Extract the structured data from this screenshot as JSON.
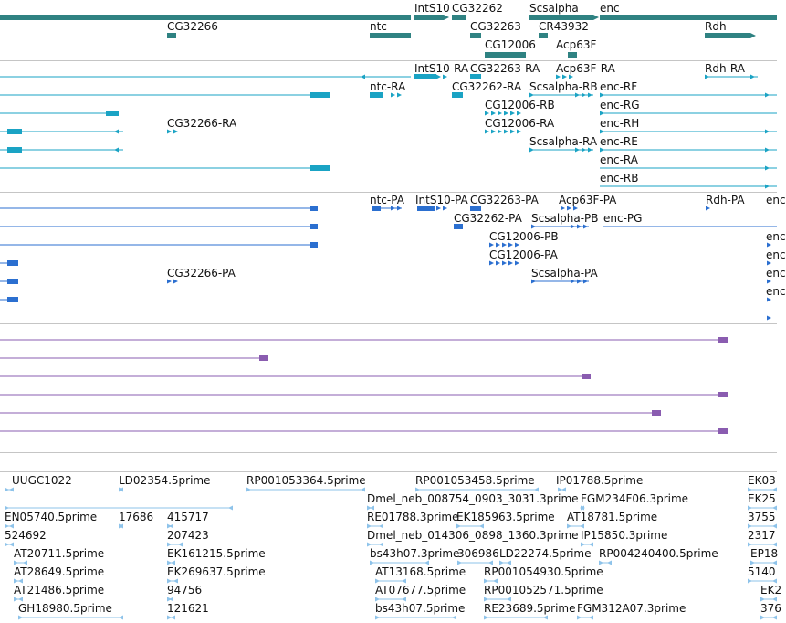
{
  "colors": {
    "gene": "#2f8282",
    "mrna": "#1aa3c4",
    "cds": "#2b6fd0",
    "read": "#8a5cb0",
    "est": "#8ec3ea",
    "separator": "#c5c5c5"
  },
  "tracks": {
    "genes": {
      "name": "gene-track",
      "features": [
        {
          "label": "IntS10",
          "row": 0
        },
        {
          "label": "CG32262",
          "row": 0
        },
        {
          "label": "Scsalpha",
          "row": 0
        },
        {
          "label": "enc",
          "row": 0
        },
        {
          "label": "CG32266",
          "row": 1
        },
        {
          "label": "ntc",
          "row": 1
        },
        {
          "label": "CG32263",
          "row": 1
        },
        {
          "label": "CR43932",
          "row": 1
        },
        {
          "label": "Rdh",
          "row": 1
        },
        {
          "label": "CG12006",
          "row": 2
        },
        {
          "label": "Acp63F",
          "row": 2
        }
      ]
    },
    "transcripts": {
      "name": "transcript-track",
      "labels": [
        "IntS10-RA",
        "CG32263-RA",
        "Acp63F-RA",
        "Rdh-RA",
        "ntc-RA",
        "CG32262-RA",
        "Scsalpha-RB",
        "enc-RF",
        "CG12006-RB",
        "enc-RG",
        "CG32266-RA",
        "CG12006-RA",
        "enc-RH",
        "Scsalpha-RA",
        "enc-RE",
        "enc-RA",
        "enc-RB"
      ]
    },
    "proteins": {
      "name": "protein-track",
      "labels": [
        "ntc-PA",
        "IntS10-PA",
        "CG32263-PA",
        "Acp63F-PA",
        "Rdh-PA",
        "CG32262-PA",
        "Scsalpha-PB",
        "enc-PG",
        "CG12006-PB",
        "CG12006-PA",
        "CG32266-PA",
        "Scsalpha-PA",
        "enc",
        "enc",
        "enc",
        "enc",
        "enc"
      ]
    },
    "reads": {
      "name": "read-track",
      "count": 6
    },
    "ests": {
      "name": "est-track",
      "labels": [
        "UUGC1022",
        "LD02354.5prime",
        "RP001053364.5prime",
        "RP001053458.5prime",
        "IP01788.5prime",
        "EK03",
        "Dmel_neb_008754_0903_3031.3prime",
        "FGM234F06.3prime",
        "EK25",
        "EN05740.5prime",
        "17686",
        "415717",
        "RE01788.3prime",
        "EK185963.5prime",
        "AT18781.5prime",
        "3755",
        "524692",
        "207423",
        "Dmel_neb_014306_0898_1360.3prime",
        "IP15850.3prime",
        "2317",
        "AT20711.5prime",
        "EK161215.5prime",
        "bs43h07.3prime",
        "306986",
        "LD22274.5prime",
        "RP004240400.5prime",
        "EP18",
        "AT28649.5prime",
        "EK269637.5prime",
        "AT13168.5prime",
        "RP001054930.5prime",
        "5140",
        "AT21486.5prime",
        "94756",
        "AT07677.5prime",
        "RP001052571.5prime",
        "EK2",
        "GH18980.5prime",
        "121621",
        "bs43h07.5prime",
        "RE23689.5prime",
        "FGM312A07.3prime",
        "376"
      ]
    }
  }
}
